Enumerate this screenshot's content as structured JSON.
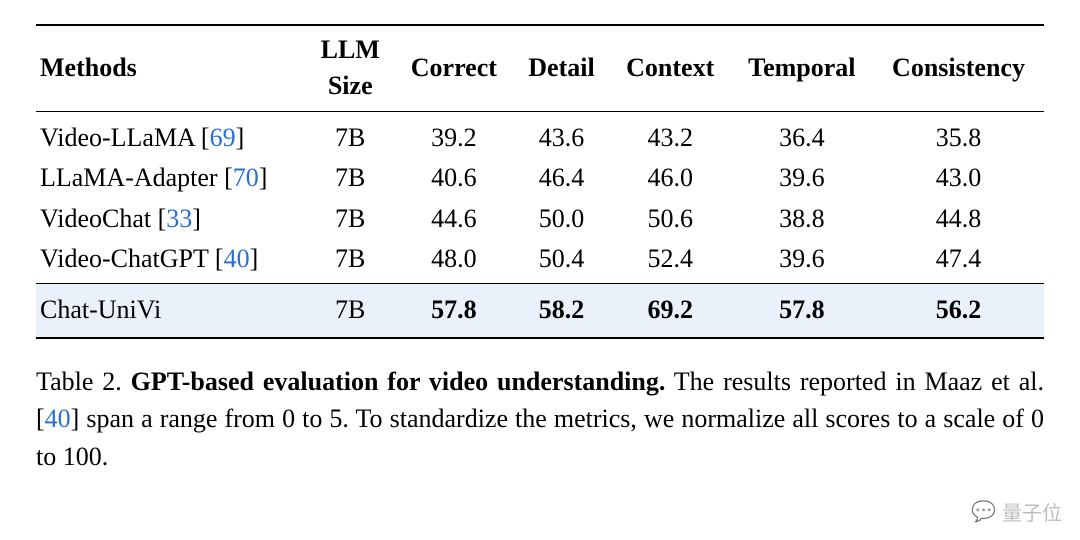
{
  "table": {
    "columns": [
      "Methods",
      "LLM Size",
      "Correct",
      "Detail",
      "Context",
      "Temporal",
      "Consistency"
    ],
    "llm_size_header_line1": "LLM",
    "llm_size_header_line2": "Size",
    "group1": [
      {
        "method": "Video-LLaMA",
        "cite_num": "69",
        "size": "7B",
        "correct": "39.2",
        "detail": "43.6",
        "context": "43.2",
        "temporal": "36.4",
        "consistency": "35.8"
      },
      {
        "method": "LLaMA-Adapter",
        "cite_num": "70",
        "size": "7B",
        "correct": "40.6",
        "detail": "46.4",
        "context": "46.0",
        "temporal": "39.6",
        "consistency": "43.0"
      },
      {
        "method": "VideoChat",
        "cite_num": "33",
        "size": "7B",
        "correct": "44.6",
        "detail": "50.0",
        "context": "50.6",
        "temporal": "38.8",
        "consistency": "44.8"
      },
      {
        "method": "Video-ChatGPT",
        "cite_num": "40",
        "size": "7B",
        "correct": "48.0",
        "detail": "50.4",
        "context": "52.4",
        "temporal": "39.6",
        "consistency": "47.4"
      }
    ],
    "group2": [
      {
        "method": "Chat-UniVi",
        "cite_num": "",
        "size": "7B",
        "correct": "57.8",
        "detail": "58.2",
        "context": "69.2",
        "temporal": "57.8",
        "consistency": "56.2",
        "bold": true
      }
    ],
    "highlight_background": "#eaf1fb",
    "cite_color": "#2a6fd6",
    "rule_color": "#000000",
    "font_family": "Times New Roman",
    "header_fontsize_pt": 20,
    "body_fontsize_pt": 20
  },
  "caption": {
    "label": "Table 2.",
    "title": "GPT-based evaluation for video understanding.",
    "text_before_cite": " The results reported in Maaz et al. [",
    "cite_num": "40",
    "text_after_cite": "] span a range from 0 to 5. To standardize the metrics, we normalize all scores to a scale of 0 to 100."
  },
  "watermark": {
    "icon": "💬",
    "text": "量子位"
  }
}
